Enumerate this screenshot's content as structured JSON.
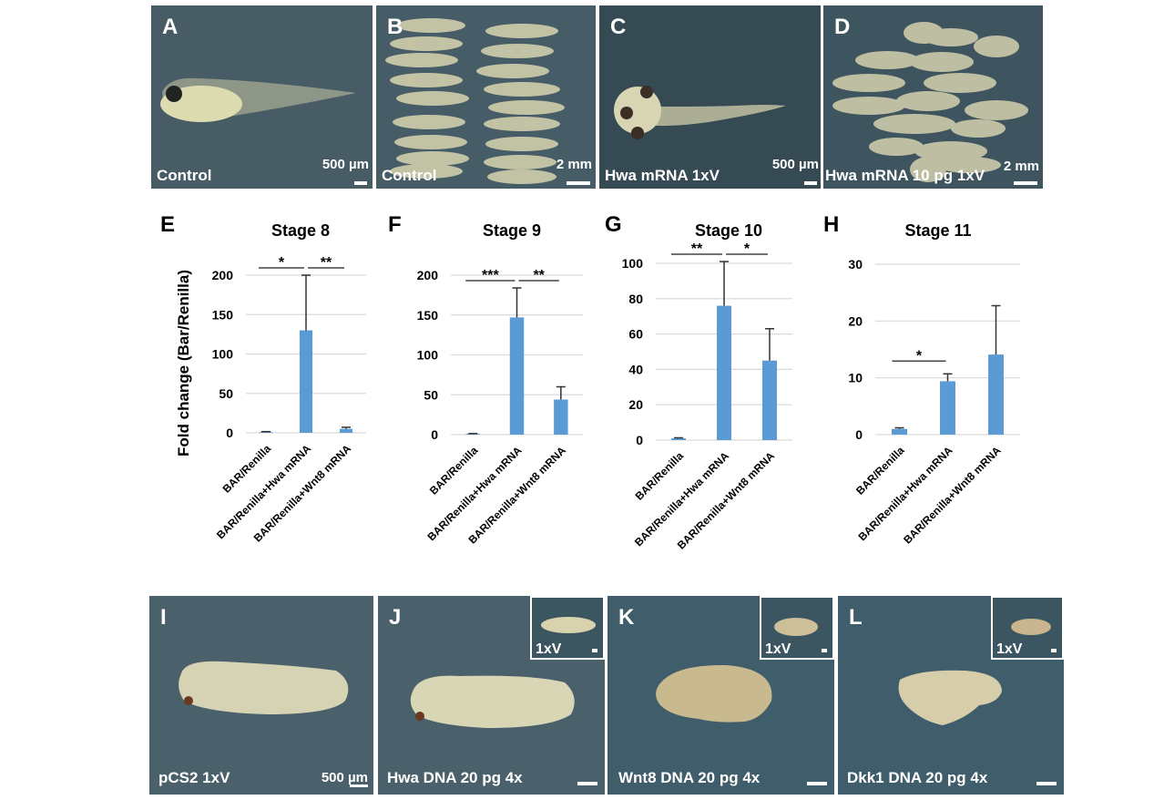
{
  "panels_top": [
    {
      "letter": "A",
      "caption": "Control",
      "scale": "500 µm"
    },
    {
      "letter": "B",
      "caption": "Control",
      "scale": "2 mm"
    },
    {
      "letter": "C",
      "caption": "Hwa mRNA 1xV",
      "scale": "500 µm"
    },
    {
      "letter": "D",
      "caption": "Hwa mRNA 10 pg 1xV",
      "scale": "2 mm"
    }
  ],
  "panels_bottom": [
    {
      "letter": "I",
      "caption": "pCS2 1xV",
      "scale": "500 µm",
      "inset": ""
    },
    {
      "letter": "J",
      "caption": "Hwa DNA 20 pg 4x",
      "scale": "",
      "inset": "1xV"
    },
    {
      "letter": "K",
      "caption": "Wnt8 DNA 20 pg 4x",
      "scale": "",
      "inset": "1xV"
    },
    {
      "letter": "L",
      "caption": "Dkk1 DNA 20 pg 4x",
      "scale": "",
      "inset": "1xV"
    }
  ],
  "colors": {
    "bar": "#5b9bd5",
    "grid": "#d9d9d9",
    "photo_bg": "#41555e"
  },
  "chart_data": [
    {
      "panel": "E",
      "type": "bar",
      "title": "Stage 8",
      "ylabel": "Fold change (Bar/Renilla)",
      "categories": [
        "BAR/Renilla",
        "BAR/Renilla+Hwa mRNA",
        "BAR/Renilla+Wnt8 mRNA"
      ],
      "values": [
        1,
        130,
        5
      ],
      "errors": [
        0.5,
        70,
        2
      ],
      "ylim": [
        0,
        200
      ],
      "yticks": [
        0,
        50,
        100,
        150,
        200
      ],
      "grid": true,
      "significance": [
        {
          "from": 0,
          "to": 1,
          "label": "*"
        },
        {
          "from": 1,
          "to": 2,
          "label": "**"
        }
      ]
    },
    {
      "panel": "F",
      "type": "bar",
      "title": "Stage 9",
      "ylabel": "",
      "categories": [
        "BAR/Renilla",
        "BAR/Renilla+Hwa mRNA",
        "BAR/Renilla+Wnt8 mRNA"
      ],
      "values": [
        1,
        147,
        44
      ],
      "errors": [
        0.3,
        37,
        16
      ],
      "ylim": [
        0,
        200
      ],
      "yticks": [
        0,
        50,
        100,
        150,
        200
      ],
      "grid": true,
      "significance": [
        {
          "from": 0,
          "to": 1,
          "label": "***"
        },
        {
          "from": 1,
          "to": 2,
          "label": "**"
        }
      ]
    },
    {
      "panel": "G",
      "type": "bar",
      "title": "Stage 10",
      "ylabel": "",
      "categories": [
        "BAR/Renilla",
        "BAR/Renilla+Hwa mRNA",
        "BAR/Renilla+Wnt8 mRNA"
      ],
      "values": [
        1,
        76,
        45
      ],
      "errors": [
        0.3,
        25,
        18
      ],
      "ylim": [
        0,
        100
      ],
      "yticks": [
        0,
        20,
        40,
        60,
        80,
        100
      ],
      "grid": true,
      "significance": [
        {
          "from": 0,
          "to": 1,
          "label": "**"
        },
        {
          "from": 1,
          "to": 2,
          "label": "*"
        }
      ]
    },
    {
      "panel": "H",
      "type": "bar",
      "title": "Stage 11",
      "ylabel": "",
      "categories": [
        "BAR/Renilla",
        "BAR/Renilla+Hwa mRNA",
        "BAR/Renilla+Wnt8 mRNA"
      ],
      "values": [
        1,
        9.4,
        14.1
      ],
      "errors": [
        0.2,
        1.3,
        8.6
      ],
      "ylim": [
        0,
        30
      ],
      "yticks": [
        0,
        10,
        20,
        30
      ],
      "grid": true,
      "significance": [
        {
          "from": 0,
          "to": 1,
          "label": "*"
        }
      ]
    }
  ]
}
